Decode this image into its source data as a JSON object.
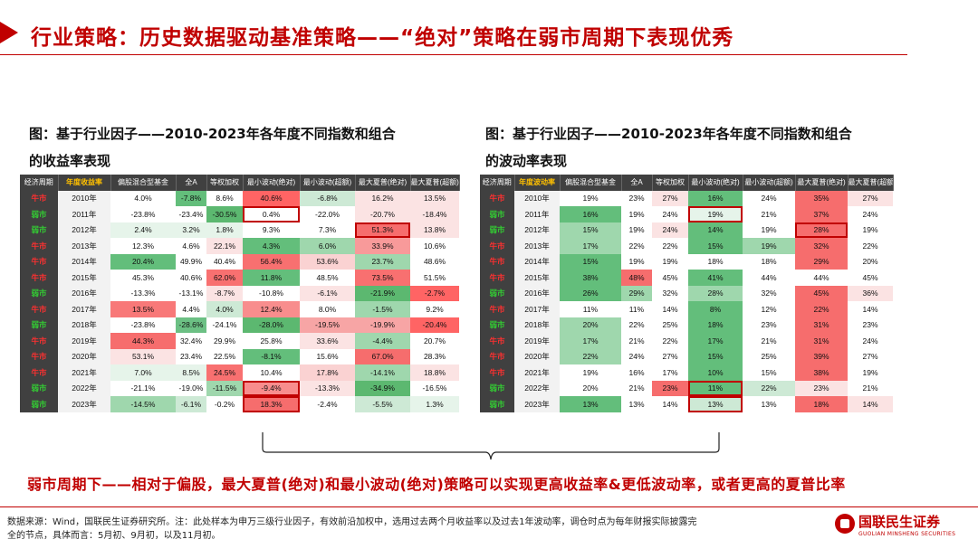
{
  "title": "行业策略：历史数据驱动基准策略——“绝对”策略在弱市周期下表现优秀",
  "fig_left": {
    "caption_line1": "图：基于行业因子——2010-2023年各年度不同指数和组合",
    "caption_line2": "的收益率表现",
    "headers": [
      "经济周期",
      "年度收益率",
      "偏股混合型基金",
      "全A",
      "等权加权",
      "最小波动(绝对)",
      "最小波动(超额)",
      "最大夏普(绝对)",
      "最大夏普(超额)"
    ],
    "rows": [
      [
        "牛市",
        "2010年",
        "4.0%",
        "-7.8%",
        "8.6%",
        "40.6%",
        "-6.8%",
        "16.2%",
        "13.5%"
      ],
      [
        "弱市",
        "2011年",
        "-23.8%",
        "-23.4%",
        "-30.5%",
        "0.4%",
        "-22.0%",
        "-20.7%",
        "-18.4%"
      ],
      [
        "弱市",
        "2012年",
        "2.4%",
        "3.2%",
        "1.8%",
        "9.3%",
        "7.3%",
        "51.3%",
        "13.8%"
      ],
      [
        "牛市",
        "2013年",
        "12.3%",
        "4.6%",
        "22.1%",
        "4.3%",
        "6.0%",
        "33.9%",
        "10.6%"
      ],
      [
        "牛市",
        "2014年",
        "20.4%",
        "49.9%",
        "40.4%",
        "56.4%",
        "53.6%",
        "23.7%",
        "48.6%"
      ],
      [
        "牛市",
        "2015年",
        "45.3%",
        "40.6%",
        "62.0%",
        "11.8%",
        "48.5%",
        "73.5%",
        "51.5%"
      ],
      [
        "弱市",
        "2016年",
        "-13.3%",
        "-13.1%",
        "-8.7%",
        "-10.8%",
        "-6.1%",
        "-21.9%",
        "-2.7%"
      ],
      [
        "牛市",
        "2017年",
        "13.5%",
        "4.4%",
        "4.0%",
        "12.4%",
        "8.0%",
        "-1.5%",
        "9.2%"
      ],
      [
        "弱市",
        "2018年",
        "-23.8%",
        "-28.6%",
        "-24.1%",
        "-28.0%",
        "-19.5%",
        "-19.9%",
        "-20.4%"
      ],
      [
        "牛市",
        "2019年",
        "44.3%",
        "32.4%",
        "29.9%",
        "25.8%",
        "33.6%",
        "-4.4%",
        "20.7%"
      ],
      [
        "牛市",
        "2020年",
        "53.1%",
        "23.4%",
        "22.5%",
        "-8.1%",
        "15.6%",
        "67.0%",
        "28.3%"
      ],
      [
        "牛市",
        "2021年",
        "7.0%",
        "8.5%",
        "24.5%",
        "10.4%",
        "17.8%",
        "-14.1%",
        "18.8%"
      ],
      [
        "弱市",
        "2022年",
        "-21.1%",
        "-19.0%",
        "-11.5%",
        "-9.4%",
        "-13.3%",
        "-34.9%",
        "-16.5%"
      ],
      [
        "弱市",
        "2023年",
        "-14.5%",
        "-6.1%",
        "-0.2%",
        "18.3%",
        "-2.4%",
        "-5.5%",
        "1.3%"
      ]
    ],
    "colors": [
      [
        "#ffffff",
        "#63be7b",
        "#ffffff",
        "#ff6464",
        "#cde9d5",
        "#fbe3e3",
        "#fbe3e3"
      ],
      [
        "#ffffff",
        "#ffffff",
        "#5cb870",
        "#ffffff",
        "#ffffff",
        "#fbe3e3",
        "#fbe3e3"
      ],
      [
        "#e6f4ea",
        "#e6f4ea",
        "#e6f4ea",
        "#ffffff",
        "#ffffff",
        "#f66d6d",
        "#fbe3e3"
      ],
      [
        "#ffffff",
        "#ffffff",
        "#fbe3e3",
        "#63be7b",
        "#9fd7ad",
        "#f89a9a",
        "#ffffff"
      ],
      [
        "#63be7b",
        "#ffffff",
        "#ffffff",
        "#f87070",
        "#fad2d2",
        "#9fd7ad",
        "#ffffff"
      ],
      [
        "#ffffff",
        "#ffffff",
        "#f87070",
        "#63be7b",
        "#ffffff",
        "#f87070",
        "#ffffff"
      ],
      [
        "#ffffff",
        "#ffffff",
        "#fbe3e3",
        "#ffffff",
        "#fbe3e3",
        "#5cb870",
        "#ff6464"
      ],
      [
        "#f87878",
        "#ffffff",
        "#cde9d5",
        "#f88d8d",
        "#ffffff",
        "#9fd7ad",
        "#ffffff"
      ],
      [
        "#ffffff",
        "#6cc084",
        "#ffffff",
        "#5cb870",
        "#f7a5a5",
        "#f7a5a5",
        "#ff6464"
      ],
      [
        "#f66d6d",
        "#ffffff",
        "#ffffff",
        "#ffffff",
        "#fbe3e3",
        "#9fd7ad",
        "#ffffff"
      ],
      [
        "#fbe3e3",
        "#ffffff",
        "#ffffff",
        "#63be7b",
        "#ffffff",
        "#f66d6d",
        "#ffffff"
      ],
      [
        "#e6f4ea",
        "#e6f4ea",
        "#f87070",
        "#ffffff",
        "#fad2d2",
        "#9fd7ad",
        "#fbe3e3"
      ],
      [
        "#ffffff",
        "#ffffff",
        "#9fd7ad",
        "#f88d8d",
        "#fbe3e3",
        "#5cb870",
        "#ffffff"
      ],
      [
        "#9fd7ad",
        "#cde9d5",
        "#ffffff",
        "#f66d6d",
        "#ffffff",
        "#cde9d5",
        "#e6f4ea"
      ]
    ]
  },
  "fig_right": {
    "caption_line1": "图：基于行业因子——2010-2023年各年度不同指数和组合",
    "caption_line2": "的波动率表现",
    "headers": [
      "经济周期",
      "年度波动率",
      "偏股混合型基金",
      "全A",
      "等权加权",
      "最小波动(绝对)",
      "最小波动(超额)",
      "最大夏普(绝对)",
      "最大夏普(超额)"
    ],
    "rows": [
      [
        "牛市",
        "2010年",
        "19%",
        "23%",
        "27%",
        "16%",
        "24%",
        "35%",
        "27%"
      ],
      [
        "弱市",
        "2011年",
        "16%",
        "19%",
        "24%",
        "19%",
        "21%",
        "37%",
        "24%"
      ],
      [
        "弱市",
        "2012年",
        "15%",
        "19%",
        "24%",
        "14%",
        "19%",
        "28%",
        "19%"
      ],
      [
        "牛市",
        "2013年",
        "17%",
        "22%",
        "22%",
        "15%",
        "19%",
        "32%",
        "22%"
      ],
      [
        "牛市",
        "2014年",
        "15%",
        "19%",
        "19%",
        "18%",
        "18%",
        "29%",
        "20%"
      ],
      [
        "牛市",
        "2015年",
        "38%",
        "48%",
        "45%",
        "41%",
        "44%",
        "44%",
        "45%"
      ],
      [
        "弱市",
        "2016年",
        "26%",
        "29%",
        "32%",
        "28%",
        "32%",
        "45%",
        "36%"
      ],
      [
        "牛市",
        "2017年",
        "11%",
        "11%",
        "14%",
        "8%",
        "12%",
        "22%",
        "14%"
      ],
      [
        "弱市",
        "2018年",
        "20%",
        "22%",
        "25%",
        "18%",
        "23%",
        "31%",
        "23%"
      ],
      [
        "牛市",
        "2019年",
        "17%",
        "21%",
        "22%",
        "17%",
        "21%",
        "31%",
        "24%"
      ],
      [
        "牛市",
        "2020年",
        "22%",
        "24%",
        "27%",
        "15%",
        "25%",
        "39%",
        "27%"
      ],
      [
        "牛市",
        "2021年",
        "19%",
        "16%",
        "17%",
        "10%",
        "15%",
        "38%",
        "19%"
      ],
      [
        "弱市",
        "2022年",
        "20%",
        "21%",
        "23%",
        "11%",
        "22%",
        "23%",
        "21%"
      ],
      [
        "弱市",
        "2023年",
        "13%",
        "13%",
        "14%",
        "13%",
        "13%",
        "18%",
        "14%"
      ]
    ],
    "colors": [
      [
        "#ffffff",
        "#ffffff",
        "#fbe3e3",
        "#63be7b",
        "#ffffff",
        "#f66d6d",
        "#fbe3e3"
      ],
      [
        "#63be7b",
        "#ffffff",
        "#ffffff",
        "#e6f4ea",
        "#ffffff",
        "#f66d6d",
        "#ffffff"
      ],
      [
        "#9fd7ad",
        "#ffffff",
        "#fbe3e3",
        "#63be7b",
        "#ffffff",
        "#f66d6d",
        "#ffffff"
      ],
      [
        "#9fd7ad",
        "#ffffff",
        "#ffffff",
        "#63be7b",
        "#9fd7ad",
        "#f66d6d",
        "#ffffff"
      ],
      [
        "#63be7b",
        "#ffffff",
        "#ffffff",
        "#ffffff",
        "#ffffff",
        "#f66d6d",
        "#ffffff"
      ],
      [
        "#63be7b",
        "#f66d6d",
        "#ffffff",
        "#63be7b",
        "#ffffff",
        "#ffffff",
        "#ffffff"
      ],
      [
        "#63be7b",
        "#9fd7ad",
        "#ffffff",
        "#9fd7ad",
        "#ffffff",
        "#f66d6d",
        "#fbe3e3"
      ],
      [
        "#ffffff",
        "#ffffff",
        "#ffffff",
        "#63be7b",
        "#ffffff",
        "#f66d6d",
        "#ffffff"
      ],
      [
        "#9fd7ad",
        "#ffffff",
        "#ffffff",
        "#63be7b",
        "#ffffff",
        "#f66d6d",
        "#ffffff"
      ],
      [
        "#9fd7ad",
        "#ffffff",
        "#ffffff",
        "#63be7b",
        "#ffffff",
        "#f66d6d",
        "#ffffff"
      ],
      [
        "#9fd7ad",
        "#ffffff",
        "#ffffff",
        "#63be7b",
        "#ffffff",
        "#f66d6d",
        "#ffffff"
      ],
      [
        "#ffffff",
        "#ffffff",
        "#ffffff",
        "#63be7b",
        "#ffffff",
        "#f66d6d",
        "#ffffff"
      ],
      [
        "#ffffff",
        "#ffffff",
        "#f66d6d",
        "#63be7b",
        "#cde9d5",
        "#fbe3e3",
        "#ffffff"
      ],
      [
        "#63be7b",
        "#ffffff",
        "#ffffff",
        "#cde9d5",
        "#ffffff",
        "#f66d6d",
        "#fbe3e3"
      ]
    ]
  },
  "conclusion": "弱市周期下——相对于偏股，最大夏普(绝对)和最小波动(绝对)策略可以实现更高收益率&更低波动率，或者更高的夏普比率",
  "source_line1": "数据来源：Wind，国联民生证券研究所。注：此处样本为申万三级行业因子，有效前沿加权中，选用过去两个月收益率以及过去1年波动率，调仓时点为每年财报实际披露完",
  "source_line2": "全的节点，具体而言：5月初、9月初，以及11月初。",
  "logo": {
    "name_cn": "国联民生证券",
    "name_en": "GUOLIAN MINSHENG SECURITIES"
  }
}
